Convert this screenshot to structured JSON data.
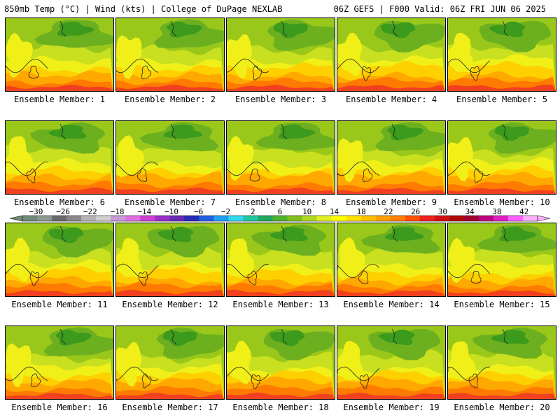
{
  "header": {
    "left": "850mb Temp (°C) | Wind (kts) | College of DuPage NEXLAB",
    "right": "06Z GEFS | F000 Valid: 06Z FRI JUN 06 2025"
  },
  "panels": [
    {
      "label": "Ensemble Member: 1"
    },
    {
      "label": "Ensemble Member: 2"
    },
    {
      "label": "Ensemble Member: 3"
    },
    {
      "label": "Ensemble Member: 4"
    },
    {
      "label": "Ensemble Member: 5"
    },
    {
      "label": "Ensemble Member: 6"
    },
    {
      "label": "Ensemble Member: 7"
    },
    {
      "label": "Ensemble Member: 8"
    },
    {
      "label": "Ensemble Member: 9"
    },
    {
      "label": "Ensemble Member: 10"
    },
    {
      "label": "Ensemble Member: 11"
    },
    {
      "label": "Ensemble Member: 12"
    },
    {
      "label": "Ensemble Member: 13"
    },
    {
      "label": "Ensemble Member: 14"
    },
    {
      "label": "Ensemble Member: 15"
    },
    {
      "label": "Ensemble Member: 16"
    },
    {
      "label": "Ensemble Member: 17"
    },
    {
      "label": "Ensemble Member: 18"
    },
    {
      "label": "Ensemble Member: 19"
    },
    {
      "label": "Ensemble Member: 20"
    }
  ],
  "colorbar": {
    "tick_labels": [
      "−30",
      "−26",
      "−22",
      "−18",
      "−14",
      "−10",
      "−6",
      "−2",
      "2",
      "6",
      "10",
      "14",
      "18",
      "22",
      "26",
      "30",
      "34",
      "38",
      "42"
    ],
    "colors": [
      "#6e8c78",
      "#8a9a92",
      "#6a6a6a",
      "#8a8a8a",
      "#b4b4b4",
      "#cfcfcf",
      "#c89ad8",
      "#e070e0",
      "#d040d0",
      "#9a30c8",
      "#6a2ab0",
      "#2a2ab8",
      "#2060e0",
      "#20a0f0",
      "#30d8f0",
      "#20c8a0",
      "#20a860",
      "#50b030",
      "#80c020",
      "#b0d820",
      "#e0f020",
      "#ffff00",
      "#ffe000",
      "#ffc000",
      "#ffa000",
      "#ff8000",
      "#ff5000",
      "#f02020",
      "#d01010",
      "#b00808",
      "#a00030",
      "#c00080",
      "#e020c0",
      "#ff60ff",
      "#ffb0ff"
    ]
  }
}
